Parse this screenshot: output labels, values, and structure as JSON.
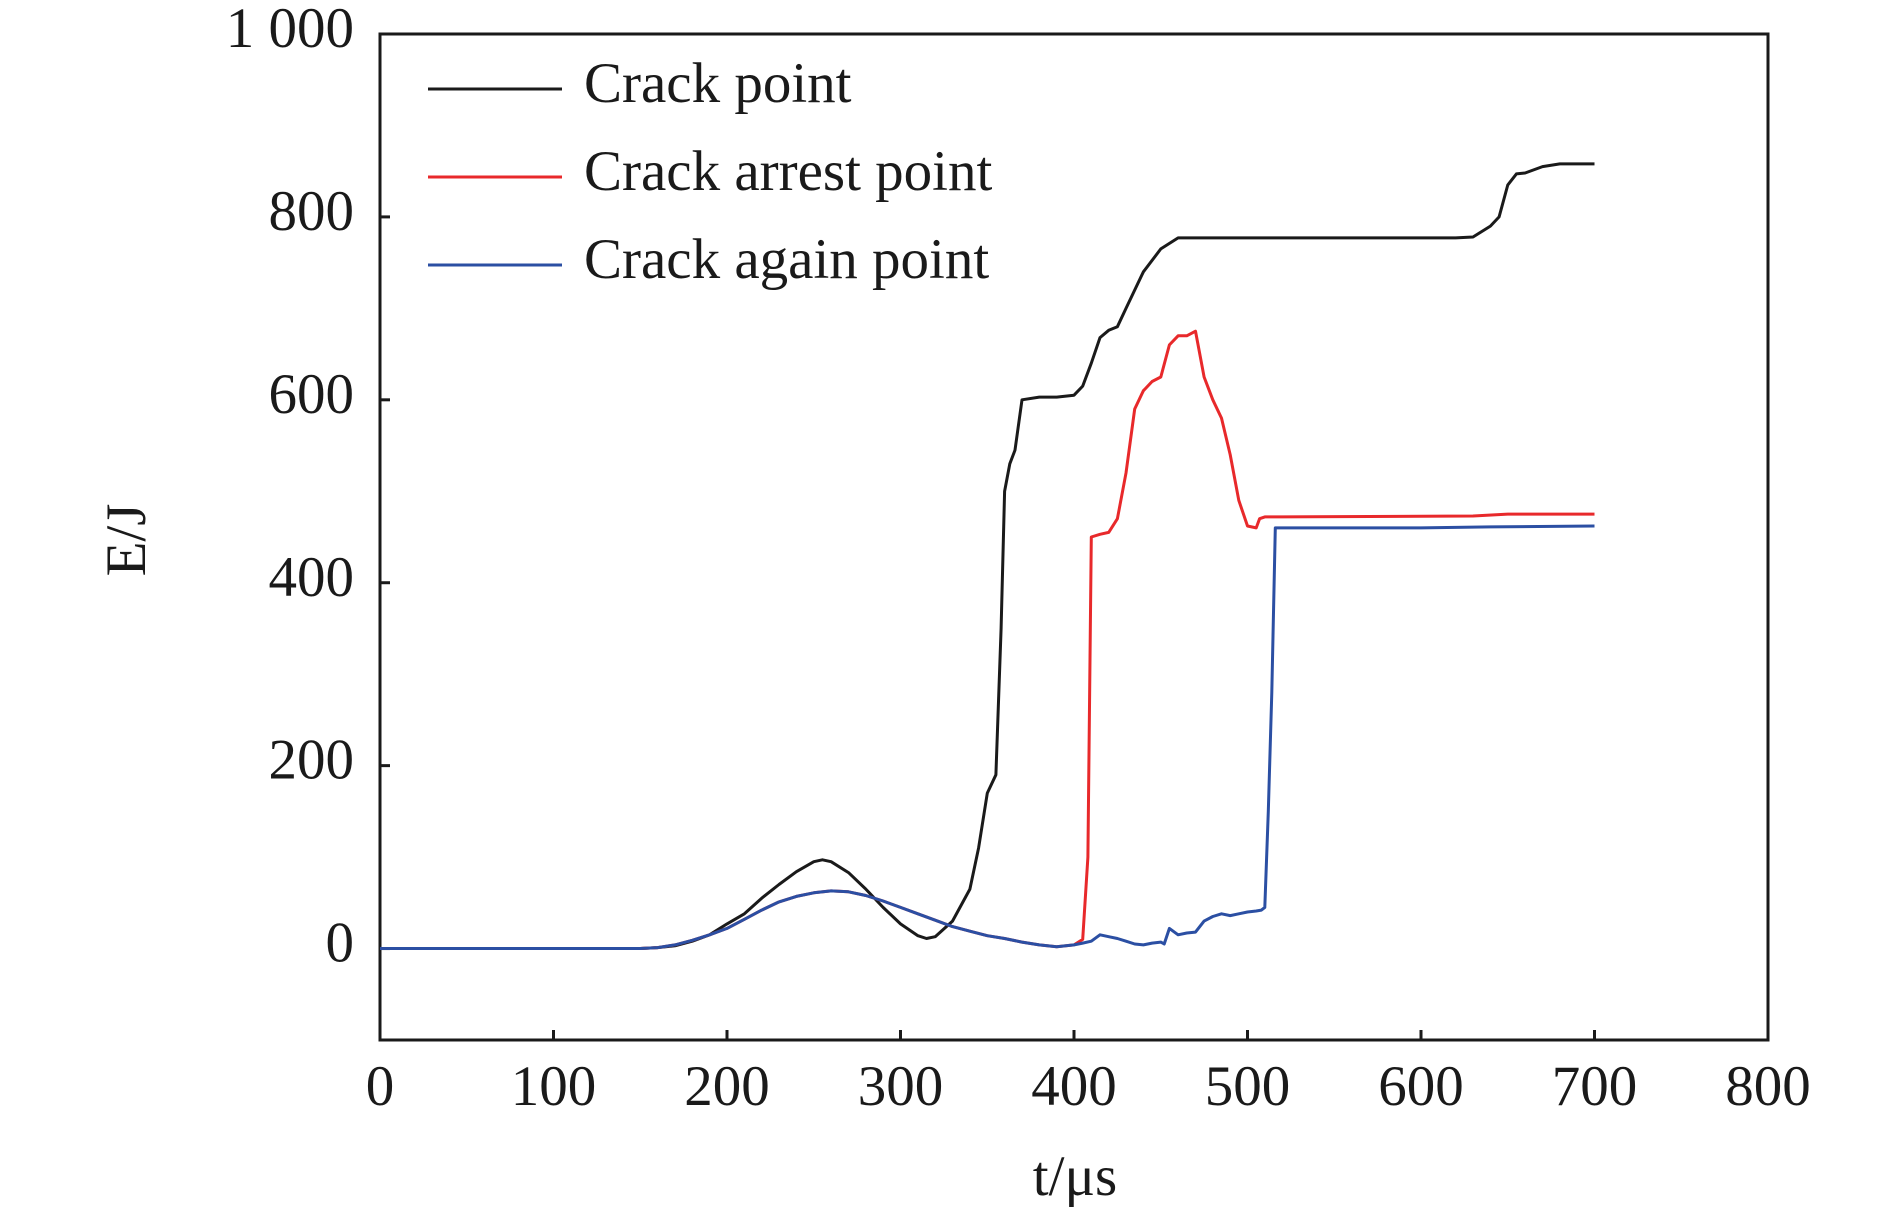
{
  "chart_data": {
    "type": "line",
    "xlabel": "t/μs",
    "ylabel": "E/J",
    "xlim": [
      0,
      800
    ],
    "xticks": [
      0,
      100,
      200,
      300,
      400,
      500,
      600,
      700,
      800
    ],
    "ylim": [
      -100,
      1000
    ],
    "yticks": [
      0,
      200,
      400,
      600,
      800,
      {
        "value": 1000,
        "label": "1 000"
      }
    ],
    "legend": "upper left",
    "series": [
      {
        "name": "Crack point",
        "color": "#1a1a1a",
        "x": [
          0,
          150,
          160,
          170,
          180,
          190,
          200,
          210,
          220,
          230,
          240,
          250,
          255,
          260,
          270,
          280,
          290,
          300,
          310,
          315,
          320,
          330,
          340,
          345,
          350,
          355,
          358,
          360,
          363,
          366,
          370,
          380,
          390,
          400,
          405,
          410,
          415,
          420,
          425,
          430,
          440,
          450,
          460,
          470,
          620,
          630,
          640,
          645,
          650,
          655,
          660,
          670,
          680,
          700
        ],
        "values": [
          0,
          0,
          1,
          3,
          8,
          15,
          27,
          38,
          55,
          70,
          84,
          95,
          97,
          95,
          83,
          65,
          45,
          27,
          14,
          11,
          13,
          30,
          65,
          110,
          170,
          190,
          350,
          500,
          530,
          545,
          600,
          603,
          603,
          605,
          615,
          640,
          668,
          676,
          680,
          700,
          740,
          765,
          777,
          777,
          777,
          778,
          790,
          800,
          835,
          847,
          848,
          855,
          858,
          858
        ]
      },
      {
        "name": "Crack arrest point",
        "color": "#e8292b",
        "x": [
          0,
          150,
          160,
          170,
          180,
          190,
          200,
          210,
          220,
          230,
          240,
          250,
          260,
          270,
          280,
          290,
          300,
          310,
          320,
          330,
          340,
          350,
          360,
          370,
          380,
          390,
          400,
          405,
          408,
          410,
          415,
          420,
          425,
          430,
          435,
          440,
          445,
          450,
          455,
          460,
          465,
          470,
          475,
          480,
          485,
          490,
          495,
          500,
          505,
          507,
          510,
          520,
          630,
          650,
          700
        ],
        "values": [
          0,
          0,
          1,
          4,
          9,
          15,
          22,
          32,
          42,
          51,
          57,
          61,
          63,
          62,
          58,
          52,
          45,
          38,
          31,
          24,
          19,
          14,
          11,
          7,
          4,
          2,
          4,
          10,
          100,
          450,
          453,
          455,
          470,
          520,
          590,
          610,
          620,
          625,
          660,
          670,
          670,
          675,
          625,
          600,
          580,
          540,
          490,
          462,
          460,
          470,
          472,
          472,
          473,
          475,
          475
        ]
      },
      {
        "name": "Crack again point",
        "color": "#2b4fa3",
        "x": [
          0,
          150,
          160,
          170,
          180,
          190,
          200,
          210,
          220,
          230,
          240,
          250,
          260,
          270,
          280,
          290,
          300,
          310,
          320,
          330,
          340,
          350,
          360,
          370,
          380,
          390,
          400,
          405,
          410,
          415,
          420,
          425,
          430,
          435,
          440,
          445,
          450,
          452,
          455,
          460,
          465,
          470,
          475,
          480,
          485,
          490,
          495,
          500,
          505,
          508,
          510,
          512,
          514,
          516,
          520,
          600,
          640,
          700
        ],
        "values": [
          0,
          0,
          1,
          4,
          9,
          15,
          22,
          32,
          42,
          51,
          57,
          61,
          63,
          62,
          58,
          52,
          45,
          38,
          31,
          24,
          19,
          14,
          11,
          7,
          4,
          2,
          4,
          6,
          8,
          15,
          13,
          11,
          8,
          5,
          4,
          6,
          7,
          5,
          22,
          15,
          17,
          18,
          30,
          35,
          38,
          36,
          38,
          40,
          41,
          42,
          45,
          150,
          280,
          460,
          460,
          460,
          461,
          462
        ]
      }
    ]
  }
}
